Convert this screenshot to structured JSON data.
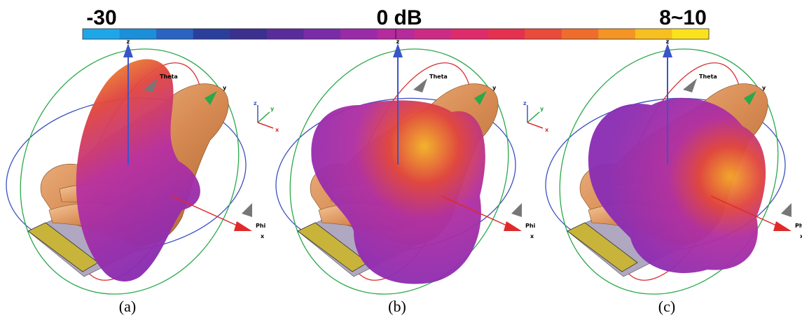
{
  "colorbar": {
    "min_label": "-30",
    "mid_label": "0 dB",
    "max_label": "8~10",
    "colors": [
      "#1ea7e8",
      "#1b8fd9",
      "#2a63c2",
      "#2a3f9c",
      "#3b2f8f",
      "#5a2b9a",
      "#7a2ca8",
      "#9a2aa8",
      "#b52a9c",
      "#cc2a86",
      "#de2b6c",
      "#e6304f",
      "#ea4a3a",
      "#ef6c2c",
      "#f39424",
      "#f7bf1f",
      "#fbe21f"
    ]
  },
  "panels": [
    {
      "label": "(a)",
      "theta": "Theta",
      "phi": "Phi",
      "x": "x",
      "y": "y",
      "z": "z",
      "triad": [
        "z",
        "y",
        "x"
      ]
    },
    {
      "label": "(b)",
      "theta": "Theta",
      "phi": "Phi",
      "x": "x",
      "y": "y",
      "z": "z",
      "triad": [
        "z",
        "y",
        "x"
      ]
    },
    {
      "label": "(c)",
      "theta": "Theta",
      "phi": "Phi",
      "x": "x",
      "y": "y",
      "z": "z"
    }
  ]
}
